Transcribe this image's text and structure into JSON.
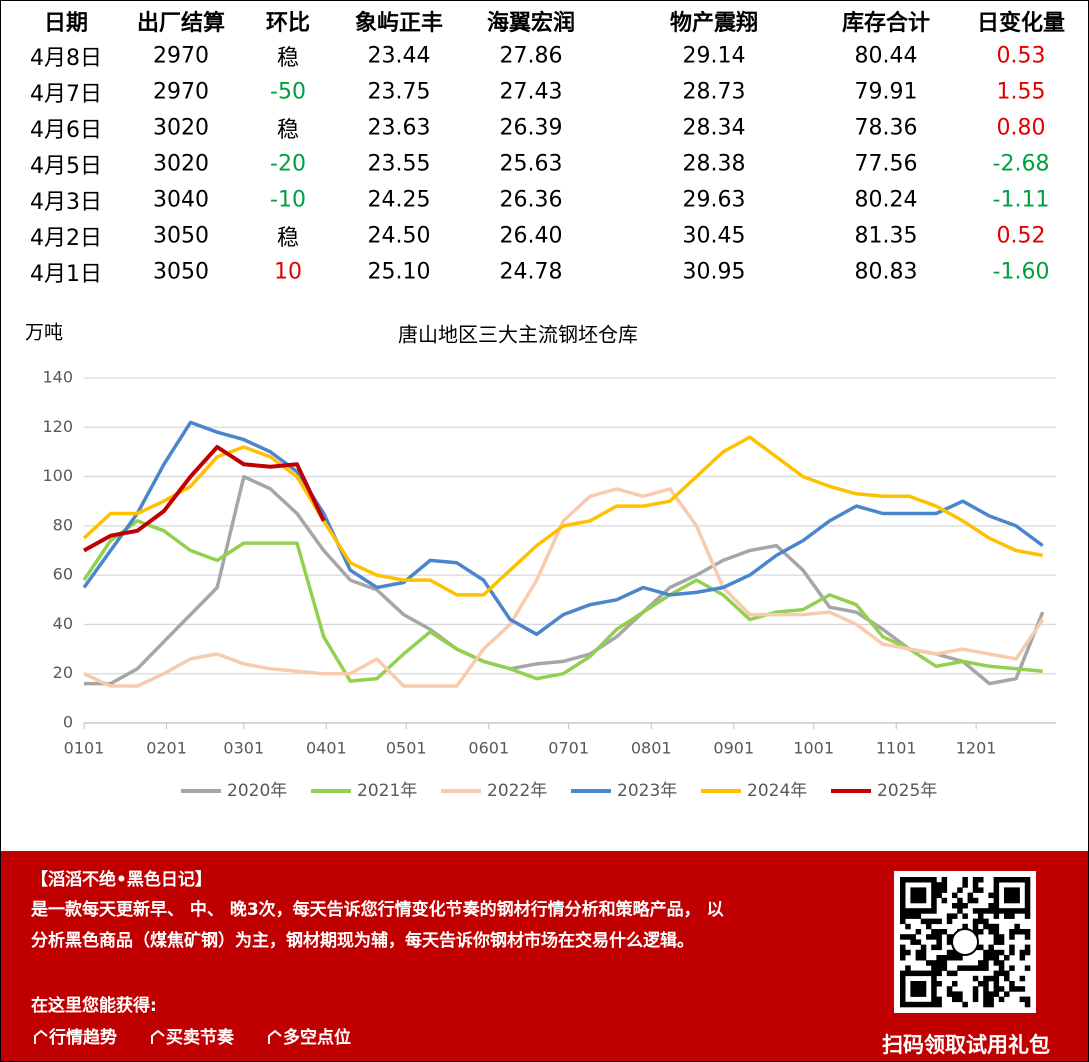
{
  "table": {
    "header": [
      "日期",
      "出厂结算",
      "环比",
      "象屿正丰",
      "海翼宏润",
      "物产震翔",
      "库存合计",
      "日变化量"
    ],
    "rows": [
      [
        "4月8日",
        "2970",
        "稳",
        "23.44",
        "27.86",
        "29.14",
        "80.44",
        "0.53"
      ],
      [
        "4月7日",
        "2970",
        "-50",
        "23.75",
        "27.43",
        "28.73",
        "79.91",
        "1.55"
      ],
      [
        "4月6日",
        "3020",
        "稳",
        "23.63",
        "26.39",
        "28.34",
        "78.36",
        "0.80"
      ],
      [
        "4月5日",
        "3020",
        "-20",
        "23.55",
        "25.63",
        "28.38",
        "77.56",
        "-2.68"
      ],
      [
        "4月3日",
        "3040",
        "-10",
        "24.25",
        "26.36",
        "29.63",
        "80.24",
        "-1.11"
      ],
      [
        "4月2日",
        "3050",
        "稳",
        "24.50",
        "26.40",
        "30.45",
        "81.35",
        "0.52"
      ],
      [
        "4月1日",
        "3050",
        "10",
        "25.10",
        "24.78",
        "30.95",
        "80.83",
        "-1.60"
      ]
    ]
  },
  "chart_data": {
    "type": "line",
    "title": "唐山地区三大主流钢坯仓库",
    "y_label": "万吨",
    "x": [
      0,
      10,
      20,
      30,
      40,
      50,
      60,
      70,
      80,
      90,
      100,
      110,
      120,
      130,
      140,
      150,
      160,
      170,
      180,
      190,
      200,
      210,
      220,
      230,
      240,
      250,
      260,
      270,
      280,
      290,
      300,
      310,
      320,
      330,
      340,
      350,
      360
    ],
    "xlim": [
      0,
      365
    ],
    "xticks": [
      {
        "value": 0,
        "label": "0101"
      },
      {
        "value": 31,
        "label": "0201"
      },
      {
        "value": 60,
        "label": "0301"
      },
      {
        "value": 91,
        "label": "0401"
      },
      {
        "value": 121,
        "label": "0501"
      },
      {
        "value": 152,
        "label": "0601"
      },
      {
        "value": 182,
        "label": "0701"
      },
      {
        "value": 213,
        "label": "0801"
      },
      {
        "value": 244,
        "label": "0901"
      },
      {
        "value": 274,
        "label": "1001"
      },
      {
        "value": 305,
        "label": "1101"
      },
      {
        "value": 335,
        "label": "1201"
      }
    ],
    "ylim": [
      0,
      140
    ],
    "yticks": [
      0,
      20,
      40,
      60,
      80,
      100,
      120,
      140
    ],
    "grid": true,
    "series": [
      {
        "name": "2020年",
        "color": "#a6a6a6",
        "values": [
          16,
          16,
          22,
          33,
          44,
          55,
          100,
          95,
          85,
          70,
          58,
          54,
          44,
          38,
          30,
          25,
          22,
          24,
          25,
          28,
          35,
          45,
          55,
          60,
          66,
          70,
          72,
          62,
          47,
          45,
          38,
          30,
          28,
          25,
          16,
          18,
          45
        ]
      },
      {
        "name": "2021年",
        "color": "#92d050",
        "values": [
          58,
          74,
          82,
          78,
          70,
          66,
          73,
          73,
          73,
          35,
          17,
          18,
          28,
          37,
          30,
          25,
          22,
          18,
          20,
          27,
          38,
          45,
          52,
          58,
          52,
          42,
          45,
          46,
          52,
          48,
          35,
          30,
          23,
          25,
          23,
          22,
          21
        ]
      },
      {
        "name": "2022年",
        "color": "#f8cbad",
        "values": [
          20,
          15,
          15,
          20,
          26,
          28,
          24,
          22,
          21,
          20,
          20,
          26,
          15,
          15,
          15,
          30,
          40,
          58,
          82,
          92,
          95,
          92,
          95,
          80,
          55,
          44,
          44,
          44,
          45,
          40,
          32,
          30,
          28,
          30,
          28,
          26,
          42
        ]
      },
      {
        "name": "2023年",
        "color": "#4a86cc",
        "values": [
          55,
          70,
          85,
          105,
          122,
          118,
          115,
          110,
          102,
          85,
          62,
          55,
          57,
          66,
          65,
          58,
          42,
          36,
          44,
          48,
          50,
          55,
          52,
          53,
          55,
          60,
          68,
          74,
          82,
          88,
          85,
          85,
          85,
          90,
          84,
          80,
          72
        ]
      },
      {
        "name": "2024年",
        "color": "#ffc000",
        "values": [
          75,
          85,
          85,
          90,
          96,
          108,
          112,
          108,
          100,
          82,
          65,
          60,
          58,
          58,
          52,
          52,
          62,
          72,
          80,
          82,
          88,
          88,
          90,
          100,
          110,
          116,
          108,
          100,
          96,
          93,
          92,
          92,
          88,
          82,
          75,
          70,
          68
        ]
      },
      {
        "name": "2025年",
        "color": "#c00000",
        "values": [
          70,
          76,
          78,
          86,
          100,
          112,
          105,
          104,
          105,
          82,
          null,
          null,
          null,
          null,
          null,
          null,
          null,
          null,
          null,
          null,
          null,
          null,
          null,
          null,
          null,
          null,
          null,
          null,
          null,
          null,
          null,
          null,
          null,
          null,
          null,
          null,
          null
        ]
      }
    ]
  },
  "banner": {
    "title": "【滔滔不绝•黑色日记】",
    "description": "是一款每天更新早、 中、 晚3次，每天告诉您行情变化节奏的钢材行情分析和策略产品， 以分析黑色商品（煤焦矿钢）为主，钢材期现为辅，每天告诉你钢材市场在交易什么逻辑。",
    "subheading": "在这里您能获得:",
    "features": [
      "行情趋势",
      "买卖节奏",
      "多空点位"
    ],
    "qr_caption": "扫码领取试用礼包"
  }
}
